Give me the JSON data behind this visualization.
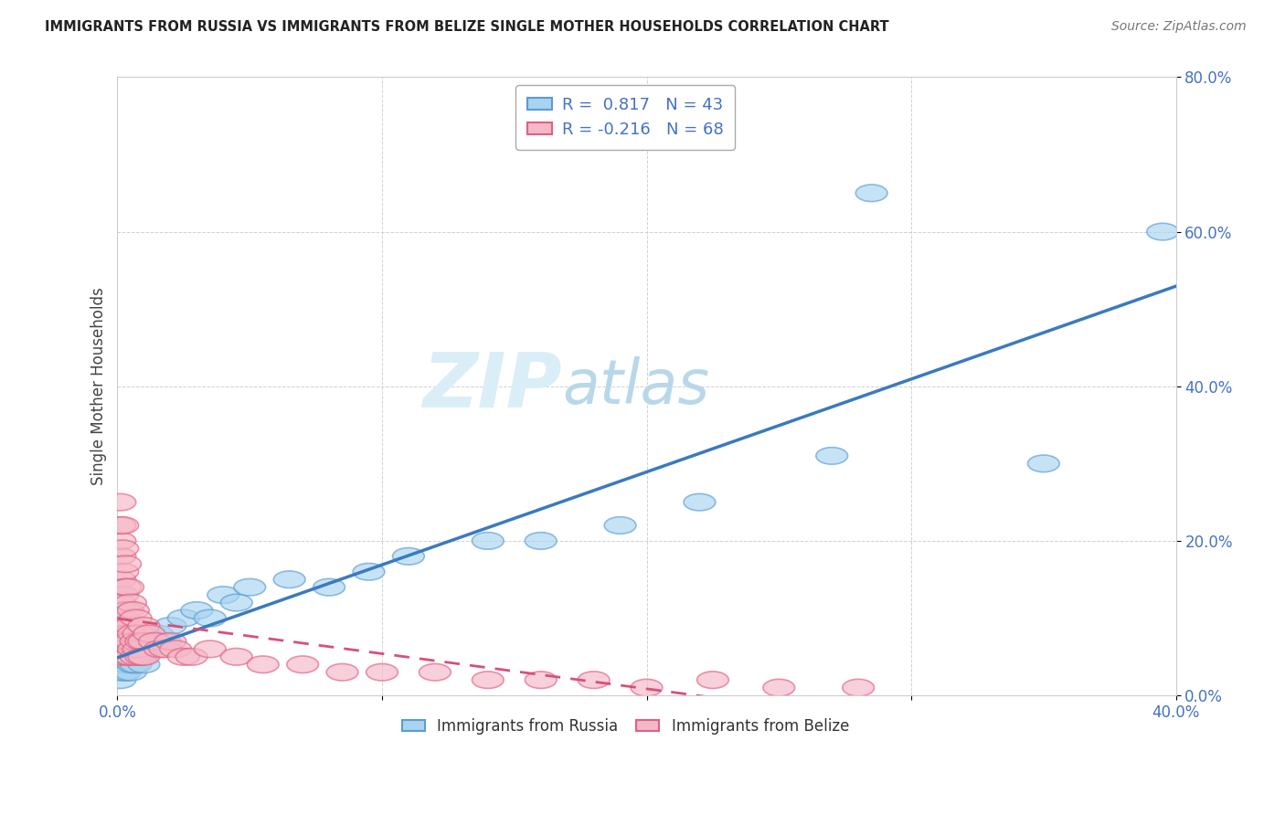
{
  "title": "IMMIGRANTS FROM RUSSIA VS IMMIGRANTS FROM BELIZE SINGLE MOTHER HOUSEHOLDS CORRELATION CHART",
  "source": "Source: ZipAtlas.com",
  "ylabel": "Single Mother Households",
  "xlim": [
    0.0,
    0.4
  ],
  "ylim": [
    0.0,
    0.8
  ],
  "xticks": [
    0.0,
    0.1,
    0.2,
    0.3,
    0.4
  ],
  "yticks": [
    0.0,
    0.2,
    0.4,
    0.6,
    0.8
  ],
  "xtick_labels": [
    "0.0%",
    "",
    "",
    "",
    "40.0%"
  ],
  "ytick_labels": [
    "0.0%",
    "20.0%",
    "40.0%",
    "60.0%",
    "80.0%"
  ],
  "russia_R": 0.817,
  "russia_N": 43,
  "belize_R": -0.216,
  "belize_N": 68,
  "russia_face_color": "#a8d4f0",
  "russia_edge_color": "#5b9bd5",
  "belize_face_color": "#f5b8c8",
  "belize_edge_color": "#e06080",
  "russia_line_color": "#3a7abf",
  "belize_line_color": "#d94f7a",
  "watermark_color": "#daeef8",
  "russia_x": [
    0.001,
    0.001,
    0.002,
    0.002,
    0.002,
    0.003,
    0.003,
    0.003,
    0.004,
    0.004,
    0.005,
    0.005,
    0.006,
    0.006,
    0.007,
    0.007,
    0.008,
    0.008,
    0.009,
    0.01,
    0.01,
    0.012,
    0.015,
    0.018,
    0.02,
    0.025,
    0.03,
    0.035,
    0.04,
    0.045,
    0.05,
    0.065,
    0.08,
    0.095,
    0.11,
    0.14,
    0.16,
    0.19,
    0.22,
    0.27,
    0.285,
    0.35,
    0.395
  ],
  "russia_y": [
    0.02,
    0.04,
    0.03,
    0.05,
    0.07,
    0.03,
    0.05,
    0.07,
    0.04,
    0.06,
    0.03,
    0.05,
    0.04,
    0.06,
    0.04,
    0.07,
    0.05,
    0.08,
    0.06,
    0.04,
    0.07,
    0.06,
    0.08,
    0.07,
    0.09,
    0.1,
    0.11,
    0.1,
    0.13,
    0.12,
    0.14,
    0.15,
    0.14,
    0.16,
    0.18,
    0.2,
    0.2,
    0.22,
    0.25,
    0.31,
    0.65,
    0.3,
    0.6
  ],
  "belize_x": [
    0.001,
    0.001,
    0.001,
    0.001,
    0.001,
    0.001,
    0.001,
    0.001,
    0.001,
    0.001,
    0.002,
    0.002,
    0.002,
    0.002,
    0.002,
    0.002,
    0.002,
    0.002,
    0.003,
    0.003,
    0.003,
    0.003,
    0.003,
    0.003,
    0.004,
    0.004,
    0.004,
    0.004,
    0.004,
    0.005,
    0.005,
    0.005,
    0.005,
    0.006,
    0.006,
    0.006,
    0.007,
    0.007,
    0.007,
    0.008,
    0.008,
    0.009,
    0.009,
    0.01,
    0.01,
    0.01,
    0.012,
    0.014,
    0.016,
    0.018,
    0.02,
    0.022,
    0.025,
    0.028,
    0.035,
    0.045,
    0.055,
    0.07,
    0.085,
    0.1,
    0.12,
    0.14,
    0.16,
    0.18,
    0.2,
    0.225,
    0.25,
    0.28
  ],
  "belize_y": [
    0.05,
    0.08,
    0.1,
    0.12,
    0.15,
    0.18,
    0.2,
    0.22,
    0.25,
    0.08,
    0.06,
    0.1,
    0.13,
    0.16,
    0.19,
    0.22,
    0.1,
    0.08,
    0.07,
    0.11,
    0.14,
    0.17,
    0.09,
    0.06,
    0.08,
    0.11,
    0.14,
    0.07,
    0.05,
    0.09,
    0.12,
    0.07,
    0.05,
    0.08,
    0.11,
    0.06,
    0.07,
    0.1,
    0.05,
    0.08,
    0.06,
    0.07,
    0.05,
    0.09,
    0.07,
    0.05,
    0.08,
    0.07,
    0.06,
    0.06,
    0.07,
    0.06,
    0.05,
    0.05,
    0.06,
    0.05,
    0.04,
    0.04,
    0.03,
    0.03,
    0.03,
    0.02,
    0.02,
    0.02,
    0.01,
    0.02,
    0.01,
    0.01
  ]
}
